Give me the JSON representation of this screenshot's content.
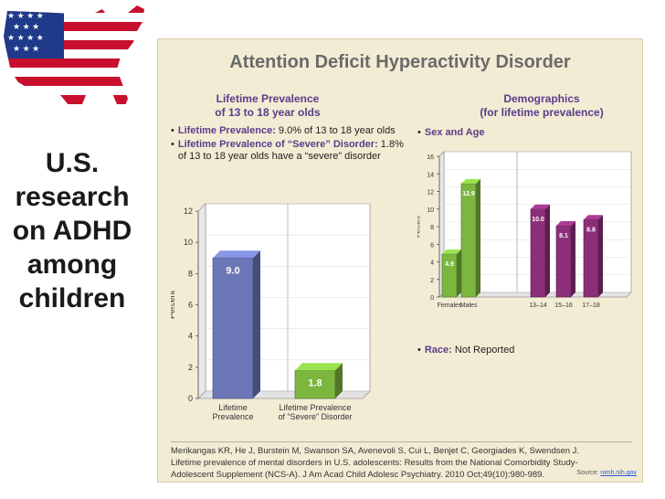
{
  "side_title": [
    "U.S.",
    "research",
    "on ADHD",
    "among",
    "children"
  ],
  "panel_title": "Attention Deficit Hyperactivity Disorder",
  "left_section": {
    "heading": [
      "Lifetime Prevalence",
      "of 13 to 18 year olds"
    ],
    "bullets": [
      {
        "label": "Lifetime Prevalence:",
        "text": " 9.0% of 13 to 18 year olds"
      },
      {
        "label": "Lifetime Prevalence of “Severe” Disorder:",
        "text": " 1.8% of 13 to 18 year olds have a “severe” disorder"
      }
    ]
  },
  "right_section": {
    "heading": [
      "Demographics",
      "(for lifetime prevalence)"
    ],
    "bullet_top": {
      "label": "Sex and Age",
      "text": ""
    },
    "bullet_bottom": {
      "label": "Race:",
      "text": " Not Reported"
    }
  },
  "citation_lines": [
    "Merikangas KR, He J, Burstein M, Swanson SA, Avenevoli S, Cui L, Benjet C, Georgiades K, Swendsen J.",
    "Lifetime prevalence of mental disorders in U.S. adolescents: Results from the National Comorbidity Study-",
    "Adolescent Supplement (NCS-A). J Am Acad Child Adolesc Psychiatry. 2010 Oct;49(10):980-989."
  ],
  "source": {
    "label": "Source: ",
    "link": "nimh.nih.gov"
  },
  "colors": {
    "blue_bar": "#6b77b7",
    "green_bar": "#7bb63f",
    "purple_bar": "#8c2f7a",
    "heading_purple": "#5b3c8a",
    "panel_bg": "#f3ecd4"
  },
  "icons": {
    "flag": "usa-flag-map-icon"
  },
  "chart_data": [
    {
      "type": "bar",
      "categories": [
        "Lifetime Prevalence",
        "Lifetime Prevalence of “Severe” Disorder"
      ],
      "category_lines": [
        [
          "Lifetime",
          "Prevalence"
        ],
        [
          "Lifetime Prevalence",
          "of “Severe” Disorder"
        ]
      ],
      "values": [
        9.0,
        1.8
      ],
      "value_labels": [
        "9.0",
        "1.8"
      ],
      "colors": [
        "#6b77b7",
        "#7bb63f"
      ],
      "ylabel": "Percent",
      "ylim": [
        0,
        12
      ],
      "yticks": [
        0,
        2,
        4,
        6,
        8,
        10,
        12
      ]
    },
    {
      "type": "bar",
      "categories": [
        "Females",
        "Males",
        "13–14",
        "15–16",
        "17–18"
      ],
      "values": [
        4.9,
        12.9,
        10.0,
        8.1,
        8.8
      ],
      "value_labels": [
        "4.9",
        "12.9",
        "10.0",
        "8.1",
        "8.8"
      ],
      "colors": [
        "#7bb63f",
        "#7bb63f",
        "#8c2f7a",
        "#8c2f7a",
        "#8c2f7a"
      ],
      "ylabel": "Percent",
      "ylim": [
        0,
        16
      ],
      "yticks": [
        0,
        2,
        4,
        6,
        8,
        10,
        12,
        14,
        16
      ]
    }
  ]
}
